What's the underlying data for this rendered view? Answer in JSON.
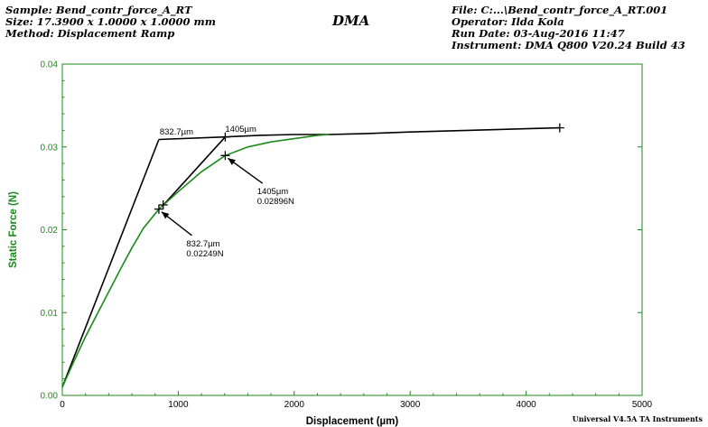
{
  "header": {
    "sample": "Sample: Bend_contr_force_A_RT",
    "size": "Size:  17.3900 x 1.0000 x 1.0000 mm",
    "method": "Method: Displacement Ramp",
    "title": "DMA",
    "file": "File: C:...\\Bend_contr_force_A_RT.001",
    "operator": "Operator: Ilda Kola",
    "run_date": "Run Date: 03-Aug-2016 11:47",
    "instrument": "Instrument: DMA Q800 V20.24 Build 43"
  },
  "footer": "Universal V4.5A TA Instruments",
  "colors": {
    "data": "#1a8a1a",
    "axis": "#1a8a1a",
    "construction": "#000000"
  },
  "chart_data": {
    "type": "line",
    "xlabel": "Displacement (µm)",
    "ylabel": "Static Force (N)",
    "xlim": [
      0,
      5000
    ],
    "ylim": [
      0,
      0.04
    ],
    "x_ticks": [
      {
        "v": 0,
        "label": "0"
      },
      {
        "v": 1000,
        "label": "1000"
      },
      {
        "v": 2000,
        "label": "2000"
      },
      {
        "v": 3000,
        "label": "3000"
      },
      {
        "v": 4000,
        "label": "4000"
      },
      {
        "v": 5000,
        "label": "5000"
      }
    ],
    "y_ticks": [
      {
        "v": 0,
        "label": "0.00"
      },
      {
        "v": 0.01,
        "label": "0.01"
      },
      {
        "v": 0.02,
        "label": "0.02"
      },
      {
        "v": 0.03,
        "label": "0.03"
      },
      {
        "v": 0.04,
        "label": "0.04"
      }
    ],
    "series": [
      {
        "x": [
          0,
          100,
          200,
          300,
          400,
          500,
          600,
          700,
          832.7,
          1000,
          1200,
          1405,
          1600,
          1800,
          2000,
          2200,
          2300
        ],
        "y": [
          0.001,
          0.0041,
          0.0071,
          0.0098,
          0.0125,
          0.0152,
          0.0178,
          0.0202,
          0.02249,
          0.0246,
          0.027,
          0.02896,
          0.03,
          0.0306,
          0.031,
          0.0314,
          0.0315
        ]
      },
      {
        "x": [
          2300,
          2600,
          3000,
          3500,
          4000,
          4290
        ],
        "y": [
          0.0315,
          0.0316,
          0.0318,
          0.032,
          0.0322,
          0.0323
        ]
      }
    ],
    "construction_lines": [
      {
        "x": [
          0,
          832.7
        ],
        "y": [
          0.001,
          0.0309
        ]
      },
      {
        "x": [
          832.7,
          1405
        ],
        "y": [
          0.0309,
          0.0312
        ]
      },
      {
        "x": [
          860,
          1405
        ],
        "y": [
          0.0228,
          0.0312
        ]
      },
      {
        "x": [
          1405,
          1700,
          2000,
          2300
        ],
        "y": [
          0.0312,
          0.0314,
          0.0315,
          0.0315
        ]
      }
    ],
    "markers": [
      {
        "x": 832.7,
        "y": 0.02249
      },
      {
        "x": 870,
        "y": 0.023
      },
      {
        "x": 1405,
        "y": 0.02896
      },
      {
        "x": 1405,
        "y": 0.0312
      },
      {
        "x": 4290,
        "y": 0.0323
      }
    ],
    "annotations": [
      {
        "id": "pt1",
        "lines": [
          "832.7µm",
          "0.02249N"
        ],
        "x": 832.7,
        "y": 0.02249,
        "text_x": 1070,
        "text_y": 0.018,
        "arrow": true
      },
      {
        "id": "pt2",
        "lines": [
          "1405µm",
          "0.02896N"
        ],
        "x": 1405,
        "y": 0.02896,
        "text_x": 1680,
        "text_y": 0.0243,
        "arrow": true
      },
      {
        "id": "lbl1",
        "lines": [
          "832.7µm"
        ],
        "x": 832.7,
        "y": 0.0309,
        "text_x": 840,
        "text_y": 0.0315,
        "arrow": false
      },
      {
        "id": "lbl2",
        "lines": [
          "1405µm"
        ],
        "x": 1405,
        "y": 0.0312,
        "text_x": 1405,
        "text_y": 0.0318,
        "arrow": false
      }
    ]
  }
}
